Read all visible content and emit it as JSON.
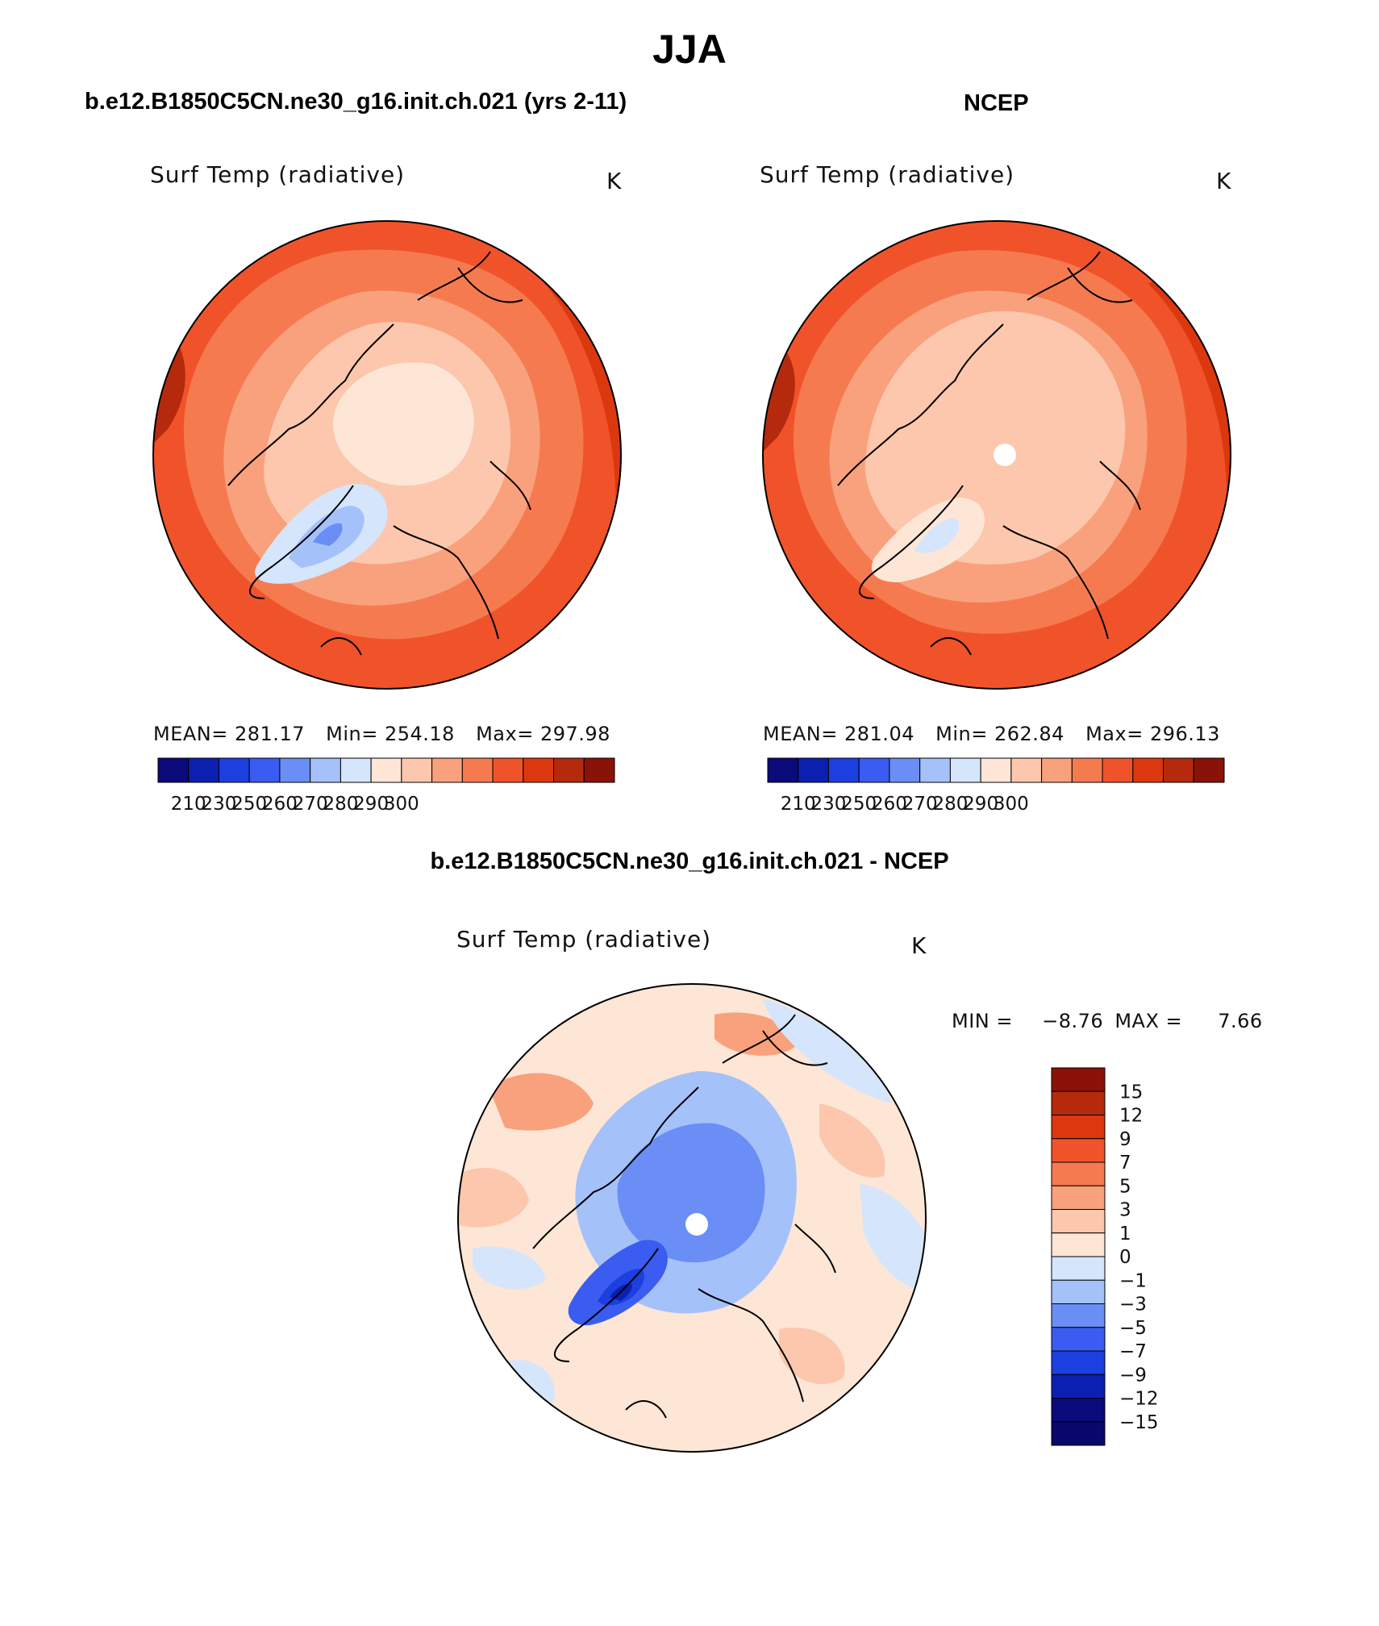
{
  "page": {
    "title": "JJA",
    "panel_left_title": "b.e12.B1850C5CN.ne30_g16.init.ch.021 (yrs 2-11)",
    "panel_right_title": "NCEP",
    "panel_diff_title": "b.e12.B1850C5CN.ne30_g16.init.ch.021 - NCEP"
  },
  "chart_data": [
    {
      "type": "heatmap",
      "projection": "north-polar-stereographic",
      "variable": "Surf Temp (radiative)",
      "units": "K",
      "mean_label": "MEAN=",
      "mean": "281.17",
      "min_label": "Min=",
      "min": "254.18",
      "max_label": "Max=",
      "max": "297.98",
      "colorbar": {
        "orientation": "horizontal",
        "tick_labels": [
          "210",
          "230",
          "250",
          "260",
          "270",
          "280",
          "290",
          "300"
        ],
        "colors": [
          "#0a0a7a",
          "#0b1fb0",
          "#1c3fe0",
          "#3a5cf0",
          "#6a8ef5",
          "#a5c1fa",
          "#d5e5fc",
          "#fde6d6",
          "#fcc7ad",
          "#f9a17c",
          "#f67a50",
          "#f0532a",
          "#dc3810",
          "#b52a0c",
          "#8a1208"
        ]
      }
    },
    {
      "type": "heatmap",
      "projection": "north-polar-stereographic",
      "variable": "Surf Temp (radiative)",
      "units": "K",
      "mean_label": "MEAN=",
      "mean": "281.04",
      "min_label": "Min=",
      "min": "262.84",
      "max_label": "Max=",
      "max": "296.13",
      "colorbar": {
        "orientation": "horizontal",
        "tick_labels": [
          "210",
          "230",
          "250",
          "260",
          "270",
          "280",
          "290",
          "300"
        ],
        "colors": [
          "#0a0a7a",
          "#0b1fb0",
          "#1c3fe0",
          "#3a5cf0",
          "#6a8ef5",
          "#a5c1fa",
          "#d5e5fc",
          "#fde6d6",
          "#fcc7ad",
          "#f9a17c",
          "#f67a50",
          "#f0532a",
          "#dc3810",
          "#b52a0c",
          "#8a1208"
        ]
      }
    },
    {
      "type": "heatmap",
      "projection": "north-polar-stereographic",
      "variable": "Surf Temp (radiative)",
      "units": "K",
      "min_label": "MIN =",
      "min": "−8.76",
      "max_label": "MAX =",
      "max": "7.66",
      "colorbar": {
        "orientation": "vertical",
        "tick_labels": [
          "15",
          "12",
          "9",
          "7",
          "5",
          "3",
          "1",
          "0",
          "−1",
          "−3",
          "−5",
          "−7",
          "−9",
          "−12",
          "−15"
        ],
        "colors": [
          "#8a1208",
          "#b52a0c",
          "#dc3810",
          "#f0532a",
          "#f67a50",
          "#f9a17c",
          "#fcc7ad",
          "#fde6d6",
          "#d5e5fc",
          "#a5c1fa",
          "#6a8ef5",
          "#3a5cf0",
          "#1c3fe0",
          "#0b1fb0",
          "#0a0a7a",
          "#08086a"
        ]
      }
    }
  ]
}
